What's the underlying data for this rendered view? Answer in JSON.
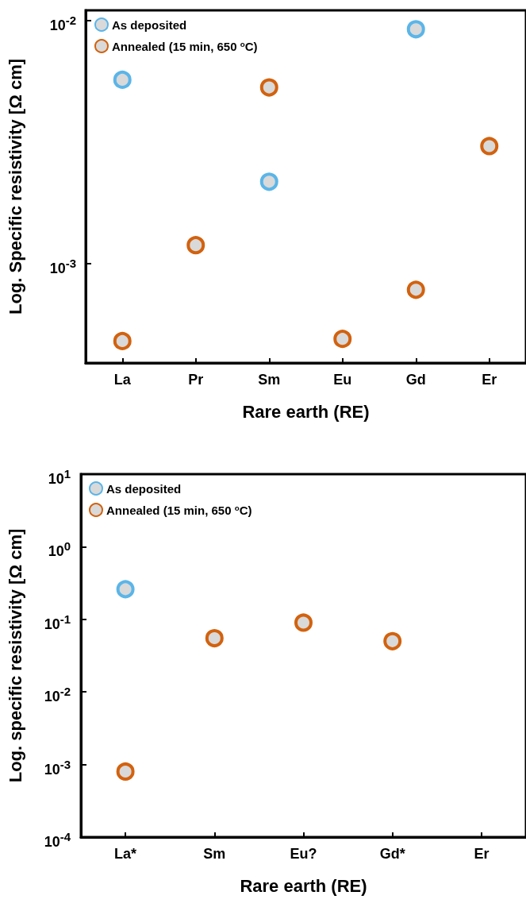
{
  "chart_data": [
    {
      "type": "scatter",
      "xlabel": "Rare earth (RE)",
      "ylabel": "Log. Specific resistivity [Ω cm]",
      "categories": [
        "La",
        "Pr",
        "Sm",
        "Eu",
        "Gd",
        "Er"
      ],
      "series": [
        {
          "name": "As deposited",
          "color": "#5bb5e8",
          "values": [
            0.0057,
            null,
            0.00217,
            null,
            0.0092,
            null
          ]
        },
        {
          "name": "Annealed (15 min, 650 $^{o}$C)",
          "color": "#d2620f",
          "values": [
            0.00048,
            0.00119,
            0.0053,
            0.00049,
            0.00078,
            0.00304
          ]
        }
      ],
      "ylim": [
        0.00039,
        0.011
      ],
      "yticks": [
        {
          "value": 0.001,
          "label": "10$^{-3}$"
        },
        {
          "value": 0.01,
          "label": "10$^{-2}$"
        }
      ],
      "log": "y",
      "marker": "circle",
      "legend": "top left",
      "grid": false
    },
    {
      "type": "scatter",
      "xlabel": "Rare earth (RE)",
      "ylabel": "Log. specific resistivity [Ω cm]",
      "categories": [
        "La*",
        "Sm",
        "Eu?",
        "Gd*",
        "Er"
      ],
      "series": [
        {
          "name": "As deposited",
          "color": "#5bb5e8",
          "values": [
            0.26,
            null,
            null,
            null,
            null
          ]
        },
        {
          "name": "Annealed (15 min, 650 $^{o}$C)",
          "color": "#d2620f",
          "values": [
            0.0008,
            0.055,
            0.09,
            0.05,
            null
          ]
        }
      ],
      "ylim": [
        0.0001,
        10
      ],
      "yticks": [
        {
          "value": 0.0001,
          "label": "10$^{-4}$"
        },
        {
          "value": 0.001,
          "label": "10$^{-3}$"
        },
        {
          "value": 0.01,
          "label": "10$^{-2}$"
        },
        {
          "value": 0.1,
          "label": "10$^{-1}$"
        },
        {
          "value": 1,
          "label": "10$^{0}$"
        },
        {
          "value": 10,
          "label": "10$^{1}$"
        }
      ],
      "log": "y",
      "marker": "circle",
      "legend": "top left",
      "grid": false
    }
  ]
}
